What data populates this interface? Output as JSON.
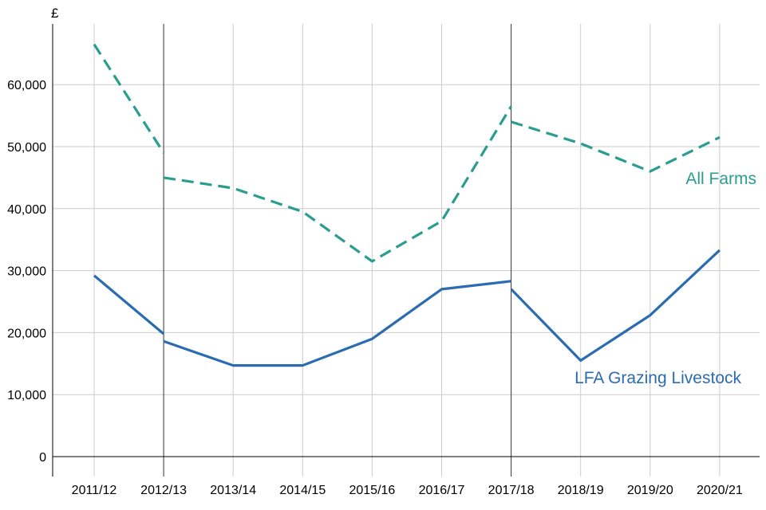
{
  "chart_data": {
    "type": "line",
    "title": "",
    "ylabel": "£",
    "xlabel": "",
    "categories": [
      "2011/12",
      "2012/13",
      "2013/14",
      "2014/15",
      "2015/16",
      "2016/17",
      "2017/18",
      "2018/19",
      "2019/20",
      "2020/21"
    ],
    "ylim": [
      -3000,
      69000
    ],
    "yticks": [
      0,
      10000,
      20000,
      30000,
      40000,
      50000,
      60000
    ],
    "ytick_labels": [
      "0",
      "10,000",
      "20,000",
      "30,000",
      "40,000",
      "50,000",
      "60,000"
    ],
    "grid": true,
    "series_breaks": [
      "2012/13",
      "2017/18"
    ],
    "series": [
      {
        "name": "All Farms",
        "color": "#2a9d8f",
        "style": "dashed",
        "segments": [
          [
            {
              "x": "2011/12",
              "y": 66500
            },
            {
              "x": "2012/13",
              "y": 49000
            }
          ],
          [
            {
              "x": "2012/13",
              "y": 45000
            },
            {
              "x": "2013/14",
              "y": 43300
            },
            {
              "x": "2014/15",
              "y": 39500
            },
            {
              "x": "2015/16",
              "y": 31500
            },
            {
              "x": "2016/17",
              "y": 38000
            },
            {
              "x": "2017/18",
              "y": 56500
            }
          ],
          [
            {
              "x": "2017/18",
              "y": 54000
            },
            {
              "x": "2018/19",
              "y": 50500
            },
            {
              "x": "2019/20",
              "y": 46000
            },
            {
              "x": "2020/21",
              "y": 51500
            }
          ]
        ]
      },
      {
        "name": "LFA Grazing Livestock",
        "color": "#2b6cb0",
        "style": "solid",
        "segments": [
          [
            {
              "x": "2011/12",
              "y": 29200
            },
            {
              "x": "2012/13",
              "y": 19800
            }
          ],
          [
            {
              "x": "2012/13",
              "y": 18600
            },
            {
              "x": "2013/14",
              "y": 14700
            },
            {
              "x": "2014/15",
              "y": 14700
            },
            {
              "x": "2015/16",
              "y": 19000
            },
            {
              "x": "2016/17",
              "y": 27000
            },
            {
              "x": "2017/18",
              "y": 28300
            }
          ],
          [
            {
              "x": "2017/18",
              "y": 27000
            },
            {
              "x": "2018/19",
              "y": 15500
            },
            {
              "x": "2019/20",
              "y": 22800
            },
            {
              "x": "2020/21",
              "y": 33300
            }
          ]
        ]
      }
    ]
  }
}
